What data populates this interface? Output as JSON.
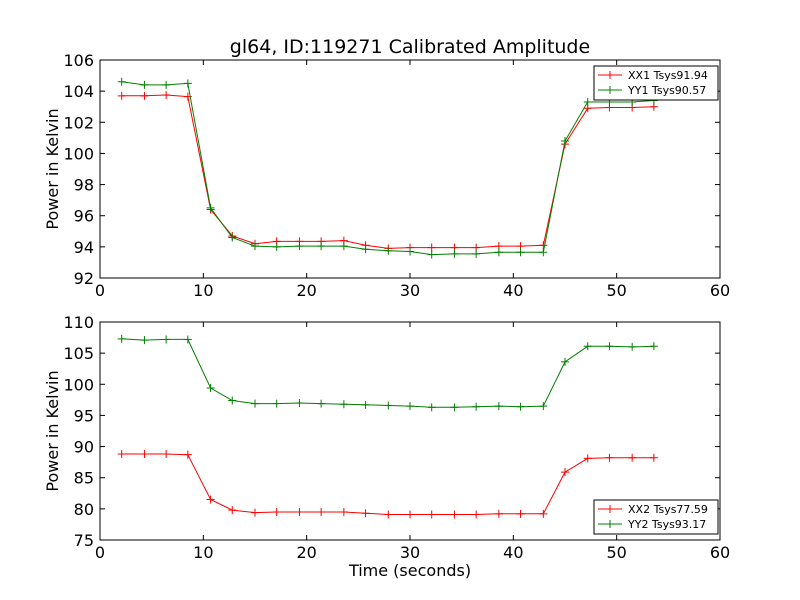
{
  "title": "gl64, ID:119271 Calibrated Amplitude",
  "chart_data": [
    {
      "type": "line",
      "title": "gl64, ID:119271 Calibrated Amplitude",
      "xlabel": "",
      "ylabel": "Power in Kelvin",
      "xlim": [
        0,
        60
      ],
      "ylim": [
        92,
        106
      ],
      "xticks": [
        0,
        10,
        20,
        30,
        40,
        50,
        60
      ],
      "yticks": [
        92,
        94,
        96,
        98,
        100,
        102,
        104,
        106
      ],
      "grid": false,
      "legend_position": "top-right",
      "x": [
        2.1,
        4.3,
        6.4,
        8.5,
        10.7,
        12.8,
        15.0,
        17.1,
        19.3,
        21.4,
        23.6,
        25.7,
        27.9,
        30.0,
        32.1,
        34.3,
        36.4,
        38.6,
        40.7,
        42.9,
        45.0,
        47.2,
        49.3,
        51.5,
        53.6
      ],
      "series": [
        {
          "name": "XX1 Tsys91.94",
          "color": "#ff0000",
          "values": [
            103.7,
            103.7,
            103.75,
            103.65,
            96.4,
            94.7,
            94.2,
            94.35,
            94.35,
            94.35,
            94.4,
            94.1,
            93.9,
            93.95,
            93.95,
            93.95,
            93.95,
            94.05,
            94.05,
            94.1,
            100.6,
            102.9,
            102.95,
            102.95,
            103.0
          ]
        },
        {
          "name": "YY1 Tsys90.57",
          "color": "#008000",
          "values": [
            104.6,
            104.4,
            104.4,
            104.5,
            96.5,
            94.6,
            94.05,
            94.0,
            94.05,
            94.05,
            94.05,
            93.85,
            93.75,
            93.7,
            93.5,
            93.55,
            93.55,
            93.65,
            93.65,
            93.65,
            100.8,
            103.3,
            103.3,
            103.3,
            103.4
          ]
        }
      ]
    },
    {
      "type": "line",
      "title": "",
      "xlabel": "Time (seconds)",
      "ylabel": "Power in Kelvin",
      "xlim": [
        0,
        60
      ],
      "ylim": [
        75,
        110
      ],
      "xticks": [
        0,
        10,
        20,
        30,
        40,
        50,
        60
      ],
      "yticks": [
        75,
        80,
        85,
        90,
        95,
        100,
        105,
        110
      ],
      "grid": false,
      "legend_position": "bottom-right",
      "x": [
        2.1,
        4.3,
        6.4,
        8.5,
        10.7,
        12.8,
        15.0,
        17.1,
        19.3,
        21.4,
        23.6,
        25.7,
        27.9,
        30.0,
        32.1,
        34.3,
        36.4,
        38.6,
        40.7,
        42.9,
        45.0,
        47.2,
        49.3,
        51.5,
        53.6
      ],
      "series": [
        {
          "name": "XX2 Tsys77.59",
          "color": "#ff0000",
          "values": [
            88.8,
            88.8,
            88.8,
            88.7,
            81.5,
            79.8,
            79.4,
            79.5,
            79.5,
            79.5,
            79.5,
            79.3,
            79.1,
            79.1,
            79.1,
            79.1,
            79.1,
            79.2,
            79.2,
            79.2,
            85.9,
            88.1,
            88.2,
            88.2,
            88.2
          ]
        },
        {
          "name": "YY2 Tsys93.17",
          "color": "#008000",
          "values": [
            107.3,
            107.1,
            107.2,
            107.2,
            99.4,
            97.4,
            96.9,
            96.9,
            97.0,
            96.9,
            96.8,
            96.7,
            96.6,
            96.5,
            96.3,
            96.3,
            96.4,
            96.5,
            96.4,
            96.5,
            103.6,
            106.1,
            106.1,
            106.0,
            106.1
          ]
        }
      ]
    }
  ]
}
